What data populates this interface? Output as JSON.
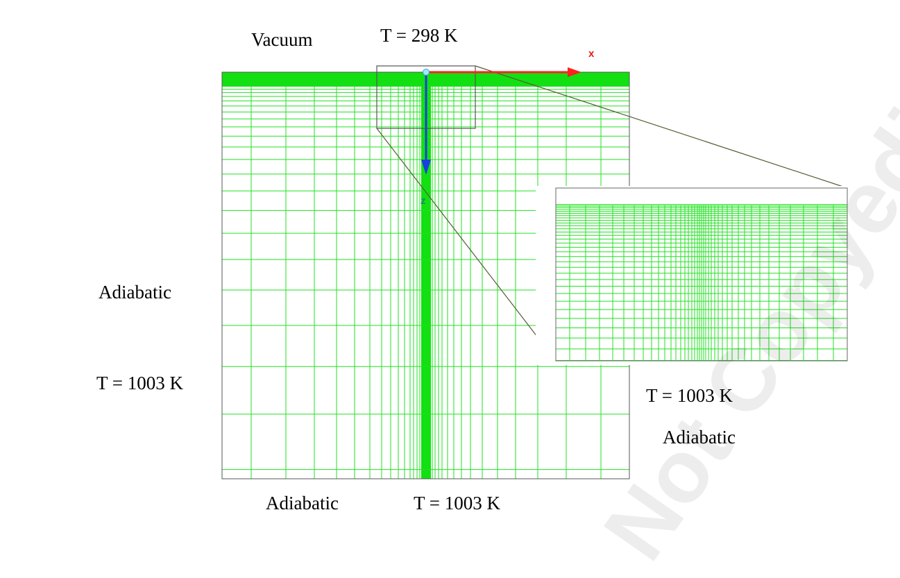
{
  "labels": {
    "vacuum": "Vacuum",
    "top_temp": "T = 298 K",
    "left_adiabatic": "Adiabatic",
    "left_temp": "T = 1003 K",
    "right_temp": "T = 1003 K",
    "right_adiabatic": "Adiabatic",
    "bottom_adiabatic": "Adiabatic",
    "bottom_temp": "T = 1003 K"
  },
  "axes": {
    "x_label": "x",
    "z_label": "z"
  },
  "watermark": "Not Copyedited",
  "colors": {
    "mesh": "#22e022",
    "mesh_dense": "#12e012",
    "x_axis": "#ff2020",
    "z_axis": "#1a3fe0",
    "z_label": "#1a8a6a",
    "outline": "#555555"
  }
}
